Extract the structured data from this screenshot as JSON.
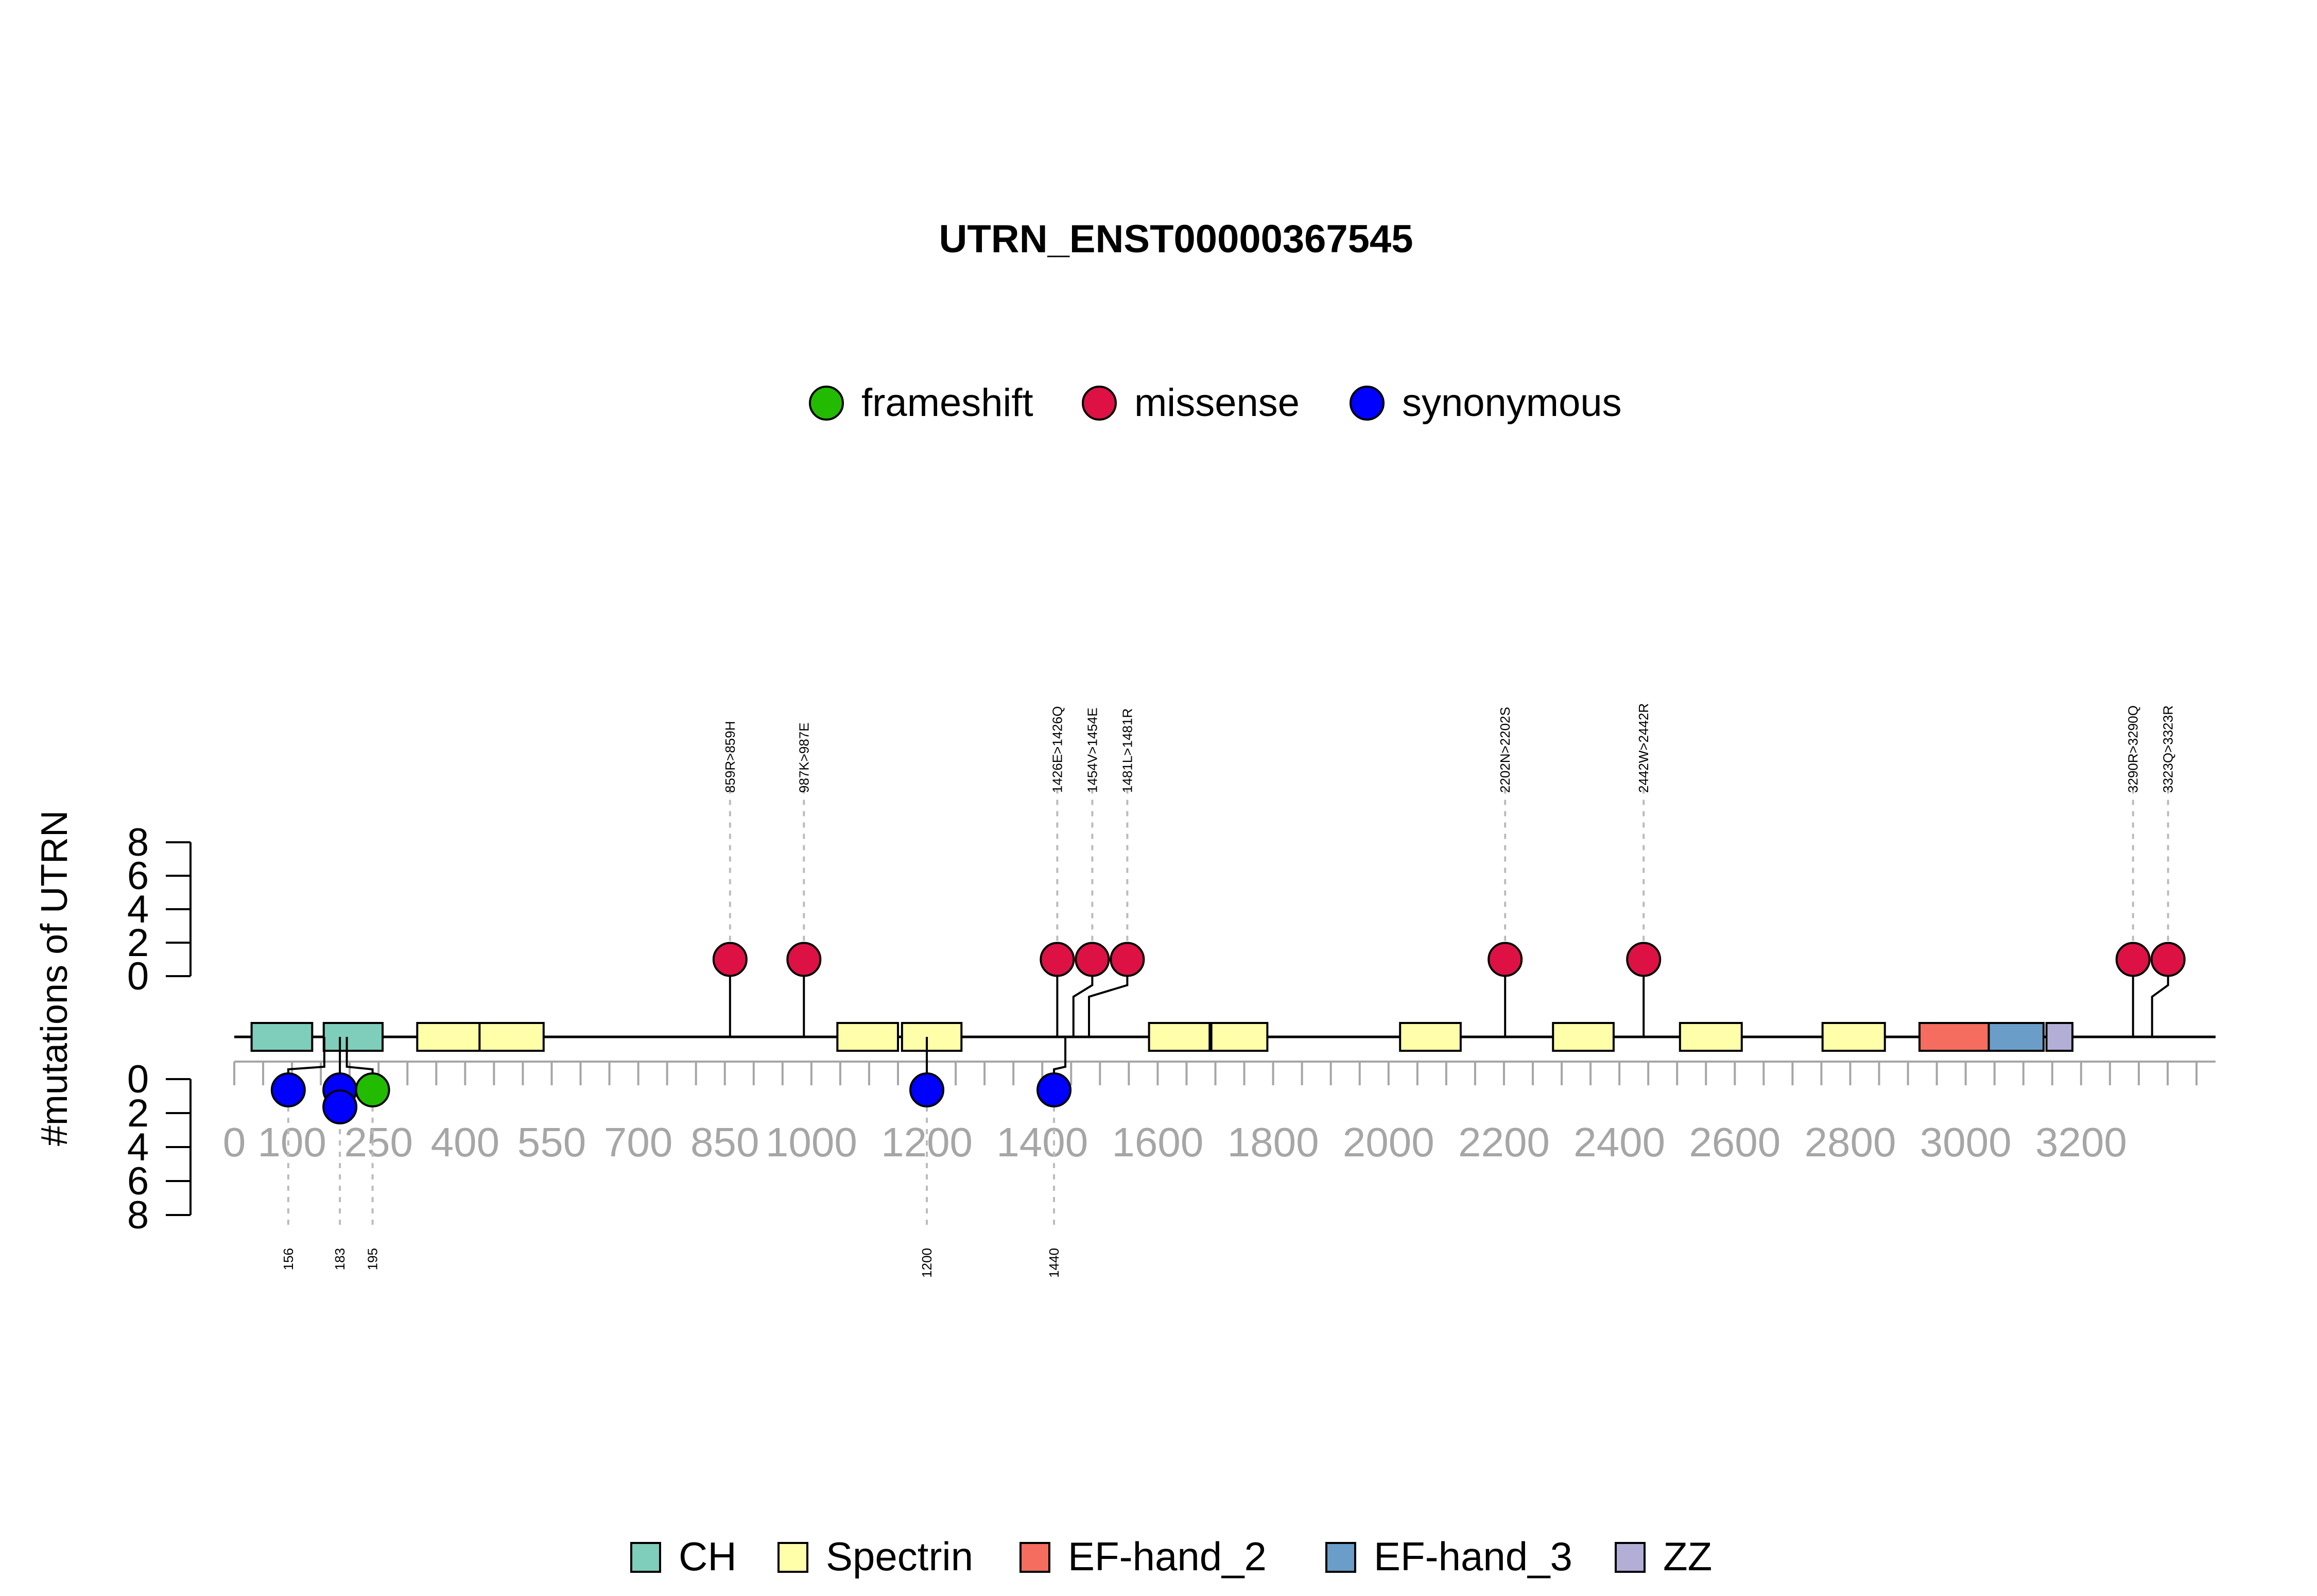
{
  "chart_data": {
    "type": "lollipop",
    "title": "UTRN_ENST00000367545",
    "ylabel": "#mutations of UTRN",
    "protein_length": 3433,
    "x_ticks_labeled": [
      0,
      100,
      250,
      400,
      550,
      700,
      850,
      1000,
      1200,
      1400,
      1600,
      1800,
      2000,
      2200,
      2400,
      2600,
      2800,
      3000,
      3200
    ],
    "y_ticks": [
      0,
      2,
      4,
      6,
      8
    ],
    "ylim": [
      0,
      8
    ],
    "mutation_legend": [
      {
        "name": "frameshift",
        "color": "#22bb00"
      },
      {
        "name": "missense",
        "color": "#dd1144"
      },
      {
        "name": "synonymous",
        "color": "#0000ff"
      }
    ],
    "domain_legend": [
      {
        "name": "CH",
        "color": "#7fcdbb"
      },
      {
        "name": "Spectrin",
        "color": "#ffffaa"
      },
      {
        "name": "EF-hand_2",
        "color": "#f46d5e"
      },
      {
        "name": "EF-hand_3",
        "color": "#6a9ec8"
      },
      {
        "name": "ZZ",
        "color": "#b3aed6"
      }
    ],
    "domains": [
      {
        "type": "CH",
        "start": 30,
        "end": 135
      },
      {
        "type": "CH",
        "start": 155,
        "end": 257
      },
      {
        "type": "Spectrin",
        "start": 317,
        "end": 425
      },
      {
        "type": "Spectrin",
        "start": 425,
        "end": 536
      },
      {
        "type": "Spectrin",
        "start": 1045,
        "end": 1150
      },
      {
        "type": "Spectrin",
        "start": 1157,
        "end": 1260
      },
      {
        "type": "Spectrin",
        "start": 1585,
        "end": 1690
      },
      {
        "type": "Spectrin",
        "start": 1693,
        "end": 1790
      },
      {
        "type": "Spectrin",
        "start": 2020,
        "end": 2125
      },
      {
        "type": "Spectrin",
        "start": 2285,
        "end": 2390
      },
      {
        "type": "Spectrin",
        "start": 2505,
        "end": 2612
      },
      {
        "type": "Spectrin",
        "start": 2752,
        "end": 2860
      },
      {
        "type": "EF-hand_2",
        "start": 2920,
        "end": 3040
      },
      {
        "type": "EF-hand_3",
        "start": 3040,
        "end": 3135
      },
      {
        "type": "ZZ",
        "start": 3140,
        "end": 3185
      }
    ],
    "mutations_top": [
      {
        "pos": 859,
        "label": "859R>859H",
        "type": "missense",
        "count": 1
      },
      {
        "pos": 987,
        "label": "987K>987E",
        "type": "missense",
        "count": 1
      },
      {
        "pos": 1426,
        "label": "1426E>1426Q",
        "type": "missense",
        "count": 1
      },
      {
        "pos": 1454,
        "label": "1454V>1454E",
        "type": "missense",
        "count": 1
      },
      {
        "pos": 1481,
        "label": "1481L>1481R",
        "type": "missense",
        "count": 1
      },
      {
        "pos": 2202,
        "label": "2202N>2202S",
        "type": "missense",
        "count": 1
      },
      {
        "pos": 2442,
        "label": "2442W>2442R",
        "type": "missense",
        "count": 1
      },
      {
        "pos": 3290,
        "label": "3290R>3290Q",
        "type": "missense",
        "count": 1
      },
      {
        "pos": 3323,
        "label": "3323Q>3323R",
        "type": "missense",
        "count": 1
      }
    ],
    "mutations_bottom": [
      {
        "pos": 156,
        "label": "156",
        "type": "synonymous",
        "count": 1
      },
      {
        "pos": 183,
        "label": "183",
        "type": "synonymous",
        "count": 2
      },
      {
        "pos": 195,
        "label": "195",
        "type": "frameshift",
        "count": 1
      },
      {
        "pos": 1200,
        "label": "1200",
        "type": "synonymous",
        "count": 1
      },
      {
        "pos": 1440,
        "label": "1440",
        "type": "synonymous",
        "count": 1
      }
    ]
  }
}
